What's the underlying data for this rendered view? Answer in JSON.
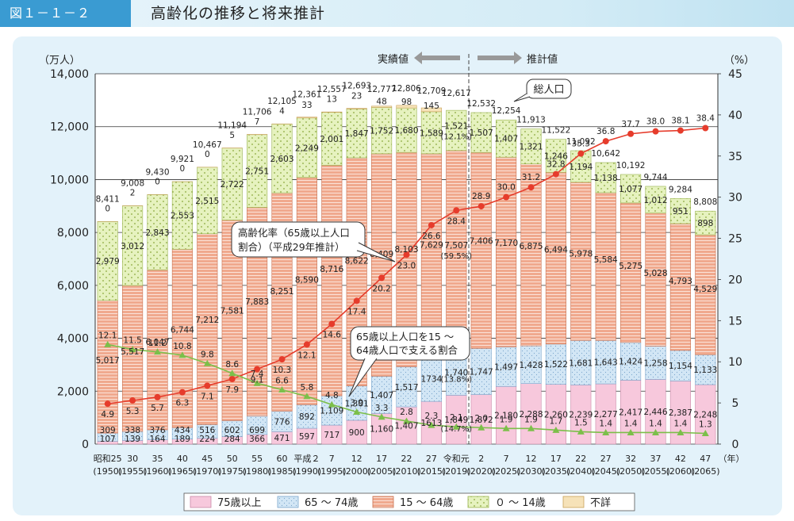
{
  "header": {
    "figure_no": "図１－１－２",
    "title": "高齢化の推移と将来推計"
  },
  "colors": {
    "age75plus": "#f7c8dc",
    "age65to74": "#cfe4f4",
    "age15to64": "#f0a98e",
    "age0to14": "#e6f2bf",
    "unknown": "#f6e2b8",
    "aging_rate_line": "#e63c2c",
    "support_ratio_line": "#7cbf4a"
  },
  "chart_data": {
    "type": "bar",
    "y_left_label": "（万人）",
    "y_right_label": "（%）",
    "y_left_range": [
      0,
      14000
    ],
    "y_left_ticks": [
      "0",
      "2,000",
      "4,000",
      "6,000",
      "8,000",
      "10,000",
      "12,000",
      "14,000"
    ],
    "y_right_range": [
      0,
      45
    ],
    "y_right_ticks": [
      "0",
      "5",
      "10",
      "15",
      "20",
      "25",
      "30",
      "35",
      "40",
      "45"
    ],
    "x_unit_label": "（年）",
    "categories": [
      {
        "era": "昭和25",
        "year": "(1950)"
      },
      {
        "era": "30",
        "year": "(1955)"
      },
      {
        "era": "35",
        "year": "(1960)"
      },
      {
        "era": "40",
        "year": "(1965)"
      },
      {
        "era": "45",
        "year": "(1970)"
      },
      {
        "era": "50",
        "year": "(1975)"
      },
      {
        "era": "55",
        "year": "(1980)"
      },
      {
        "era": "60",
        "year": "(1985)"
      },
      {
        "era": "平成２",
        "year": "(1990)"
      },
      {
        "era": "7",
        "year": "(1995)"
      },
      {
        "era": "12",
        "year": "(2000)"
      },
      {
        "era": "17",
        "year": "(2005)"
      },
      {
        "era": "22",
        "year": "(2010)"
      },
      {
        "era": "27",
        "year": "(2015)"
      },
      {
        "era": "令和元",
        "year": "(2019)"
      },
      {
        "era": "2",
        "year": "(2020)"
      },
      {
        "era": "7",
        "year": "(2025)"
      },
      {
        "era": "12",
        "year": "(2030)"
      },
      {
        "era": "17",
        "year": "(2035)"
      },
      {
        "era": "22",
        "year": "(2040)"
      },
      {
        "era": "27",
        "year": "(2045)"
      },
      {
        "era": "32",
        "year": "(2050)"
      },
      {
        "era": "37",
        "year": "(2055)"
      },
      {
        "era": "42",
        "year": "(2060)"
      },
      {
        "era": "47",
        "year": "(2065)"
      }
    ],
    "totals": [
      8411,
      9008,
      9430,
      9921,
      10467,
      11194,
      11706,
      12105,
      12361,
      12557,
      12693,
      12777,
      12806,
      12709,
      12617,
      12532,
      12254,
      11913,
      11522,
      11092,
      10642,
      10192,
      9744,
      9284,
      8808
    ],
    "total_labels": [
      "8,411",
      "9,008",
      "9,430",
      "9,921",
      "10,467",
      "11,194",
      "11,706",
      "12,105",
      "12,361",
      "12,557",
      "12,693",
      "12,777",
      "12,806",
      "12,709",
      "12,617",
      "12,532",
      "12,254",
      "11,913",
      "11,522",
      "11,092",
      "10,642",
      "10,192",
      "9,744",
      "9,284",
      "8,808"
    ],
    "series": [
      {
        "name": "75歳以上",
        "key": "age75plus",
        "values": [
          107,
          139,
          164,
          189,
          224,
          284,
          366,
          471,
          597,
          717,
          900,
          1160,
          1407,
          1613,
          1849,
          1872,
          2180,
          2288,
          2260,
          2239,
          2277,
          2417,
          2446,
          2387,
          2248
        ],
        "labels": [
          "107",
          "139",
          "164",
          "189",
          "224",
          "284",
          "366",
          "471",
          "597",
          "717",
          "900",
          "1,160",
          "1,407",
          "1613",
          "1,849",
          "1,872",
          "2,180",
          "2,288",
          "2,260",
          "2,239",
          "2,277",
          "2,417",
          "2,446",
          "2,387",
          "2,248"
        ]
      },
      {
        "name": "65 ～ 74歳",
        "key": "age65to74",
        "values": [
          309,
          338,
          376,
          434,
          516,
          602,
          699,
          776,
          892,
          1109,
          1301,
          1407,
          1517,
          1734,
          1740,
          1747,
          1497,
          1428,
          1522,
          1681,
          1643,
          1424,
          1258,
          1154,
          1133
        ],
        "labels": [
          "309",
          "338",
          "376",
          "434",
          "516",
          "602",
          "699",
          "776",
          "892",
          "1,109",
          "1,301",
          "1,407",
          "1,517",
          "1734",
          "1,740",
          "1,747",
          "1,497",
          "1,428",
          "1,522",
          "1,681",
          "1,643",
          "1,424",
          "1,258",
          "1,154",
          "1,133"
        ]
      },
      {
        "name": "15 ～ 64歳",
        "key": "age15to64",
        "values": [
          5017,
          5517,
          6047,
          6744,
          7212,
          7581,
          7883,
          8251,
          8590,
          8716,
          8622,
          8409,
          8103,
          7629,
          7507,
          7406,
          7170,
          6875,
          6494,
          5978,
          5584,
          5275,
          5028,
          4793,
          4529
        ],
        "labels": [
          "5,017",
          "5,517",
          "6,047",
          "6,744",
          "7,212",
          "7,581",
          "7,883",
          "8,251",
          "8,590",
          "8,716",
          "8,622",
          "8,409",
          "8,103",
          "7,629",
          "7,507",
          "7,406",
          "7,170",
          "6,875",
          "6,494",
          "5,978",
          "5,584",
          "5,275",
          "5,028",
          "4,793",
          "4,529"
        ]
      },
      {
        "name": "０ ～ 14歳",
        "key": "age0to14",
        "values": [
          2979,
          3012,
          2843,
          2553,
          2515,
          2722,
          2751,
          2603,
          2249,
          2001,
          1847,
          1752,
          1680,
          1589,
          1521,
          1507,
          1407,
          1321,
          1246,
          1194,
          1138,
          1077,
          1012,
          951,
          898
        ],
        "labels": [
          "2,979",
          "3,012",
          "2,843",
          "2,553",
          "2,515",
          "2,722",
          "2,751",
          "2,603",
          "2,249",
          "2,001",
          "1,847",
          "1,752",
          "1,680",
          "1,589",
          "1,521",
          "1,507",
          "1,407",
          "1,321",
          "1,246",
          "1,194",
          "1,138",
          "1,077",
          "1,012",
          "951",
          "898"
        ]
      },
      {
        "name": "不詳",
        "key": "unknown",
        "values": [
          0,
          2,
          0,
          0,
          0,
          5,
          7,
          4,
          33,
          13,
          23,
          48,
          98,
          145,
          null,
          null,
          null,
          null,
          null,
          null,
          null,
          null,
          null,
          null,
          null
        ],
        "labels": [
          "0",
          "2",
          "0",
          "0",
          "0",
          "5",
          "7",
          "4",
          "33",
          "13",
          "23",
          "48",
          "98",
          "145",
          "",
          "",
          "",
          "",
          "",
          "",
          "",
          "",
          "",
          "",
          ""
        ]
      }
    ],
    "aging_rate": {
      "name": "高齢化率（65歳以上人口割合）（平成29年推計）",
      "values": [
        4.9,
        5.3,
        5.7,
        6.3,
        7.1,
        7.9,
        9.1,
        10.3,
        12.1,
        14.6,
        17.4,
        20.2,
        23.0,
        26.6,
        28.4,
        28.9,
        30.0,
        31.2,
        32.8,
        35.3,
        36.8,
        37.7,
        38.0,
        38.1,
        38.4
      ],
      "labels": [
        "4.9",
        "5.3",
        "5.7",
        "6.3",
        "7.1",
        "7.9",
        "9.1",
        "10.3",
        "12.1",
        "14.6",
        "17.4",
        "20.2",
        "23.0",
        "26.6",
        "28.4",
        "28.9",
        "30.0",
        "31.2",
        "32.8",
        "35.3",
        "36.8",
        "37.7",
        "38.0",
        "38.1",
        "38.4"
      ]
    },
    "support_ratio": {
      "name": "65歳以上人口を15～64歳人口で支える割合",
      "values": [
        12.1,
        11.5,
        11.2,
        10.8,
        9.8,
        8.6,
        7.4,
        6.6,
        5.8,
        4.8,
        3.9,
        3.3,
        2.8,
        2.3,
        2.1,
        2.0,
        1.9,
        1.9,
        1.7,
        1.5,
        1.4,
        1.4,
        1.4,
        1.4,
        1.3
      ],
      "labels": [
        "12.1",
        "11.5",
        "11.2",
        "10.8",
        "9.8",
        "8.6",
        "7.4",
        "6.6",
        "5.8",
        "4.8",
        "3.9",
        "3.3",
        "2.8",
        "2.3",
        "2.1",
        "2.0",
        "1.9",
        "1.9",
        "1.7",
        "1.5",
        "1.4",
        "1.4",
        "1.4",
        "1.4",
        "1.3"
      ]
    },
    "reiwa_gan_pct": {
      "age75plus": "(14.7%)",
      "age65to74": "(13.8%)",
      "age15to64": "(59.5%)",
      "age0to14": "(12.1%)"
    },
    "annotations": {
      "actual": "実績値",
      "projected": "推計値",
      "total_population": "総人口",
      "aging_rate_line1": "高齢化率（65歳以上人口",
      "aging_rate_line2": "割合）（平成29年推計）",
      "support_line1": "65歳以上人口を15 ～",
      "support_line2": "64歳人口で支える割合"
    },
    "legend": [
      {
        "label": "75歳以上",
        "key": "age75plus"
      },
      {
        "label": "65 ～ 74歳",
        "key": "age65to74"
      },
      {
        "label": "15 ～ 64歳",
        "key": "age15to64"
      },
      {
        "label": "０ ～ 14歳",
        "key": "age0to14"
      },
      {
        "label": "不詳",
        "key": "unknown"
      }
    ]
  }
}
